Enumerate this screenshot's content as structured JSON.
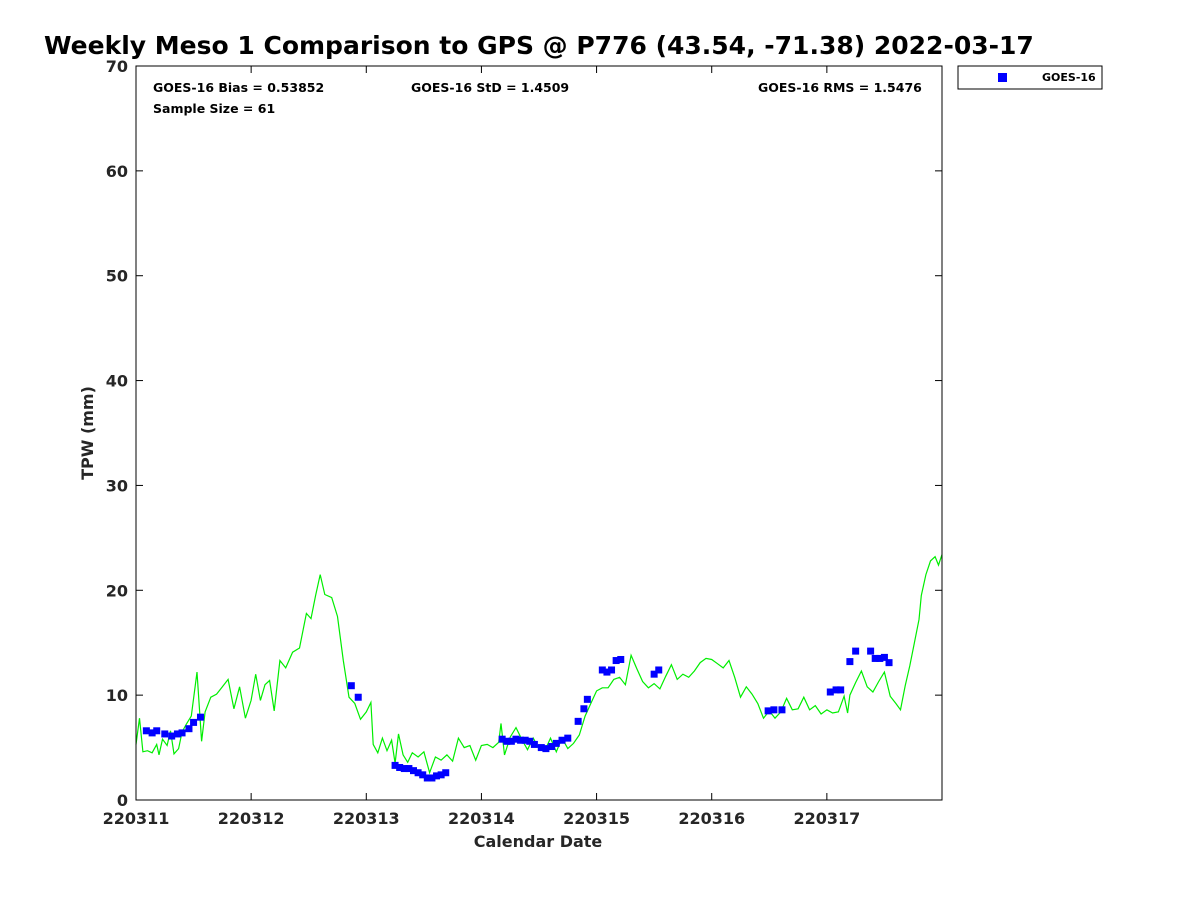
{
  "chart_data": {
    "type": "scatter",
    "title": "Weekly Meso 1 Comparison to GPS @ P776 (43.54, -71.38) 2022-03-17",
    "xlabel": "Calendar Date",
    "ylabel": "TPW (mm)",
    "xlim": [
      0,
      7
    ],
    "ylim": [
      0,
      70
    ],
    "yticks": [
      0,
      10,
      20,
      30,
      40,
      50,
      60,
      70
    ],
    "xticks": [
      {
        "value": 0,
        "label": "220311"
      },
      {
        "value": 1,
        "label": "220312"
      },
      {
        "value": 2,
        "label": "220313"
      },
      {
        "value": 3,
        "label": "220314"
      },
      {
        "value": 4,
        "label": "220315"
      },
      {
        "value": 5,
        "label": "220316"
      },
      {
        "value": 6,
        "label": "220317"
      }
    ],
    "grid": false,
    "legend_position": "top-right",
    "stats": {
      "bias": "GOES-16 Bias = 0.53852",
      "std": "GOES-16 StD = 1.4509",
      "rms": "GOES-16 RMS = 1.5476",
      "sample": "Sample Size = 61"
    },
    "series": [
      {
        "name": "GOES-16",
        "color": "#0000ff",
        "marker": "square",
        "points": [
          [
            0.09,
            6.6
          ],
          [
            0.14,
            6.4
          ],
          [
            0.18,
            6.6
          ],
          [
            0.25,
            6.3
          ],
          [
            0.31,
            6.1
          ],
          [
            0.36,
            6.3
          ],
          [
            0.4,
            6.4
          ],
          [
            0.46,
            6.8
          ],
          [
            0.5,
            7.4
          ],
          [
            0.56,
            7.9
          ],
          [
            1.87,
            10.9
          ],
          [
            1.93,
            9.8
          ],
          [
            2.25,
            3.3
          ],
          [
            2.29,
            3.1
          ],
          [
            2.33,
            3.0
          ],
          [
            2.37,
            3.0
          ],
          [
            2.41,
            2.8
          ],
          [
            2.45,
            2.6
          ],
          [
            2.49,
            2.4
          ],
          [
            2.53,
            2.1
          ],
          [
            2.57,
            2.1
          ],
          [
            2.61,
            2.3
          ],
          [
            2.65,
            2.4
          ],
          [
            2.69,
            2.6
          ],
          [
            3.18,
            5.8
          ],
          [
            3.22,
            5.6
          ],
          [
            3.26,
            5.6
          ],
          [
            3.3,
            5.8
          ],
          [
            3.34,
            5.7
          ],
          [
            3.38,
            5.7
          ],
          [
            3.42,
            5.6
          ],
          [
            3.46,
            5.3
          ],
          [
            3.52,
            5.0
          ],
          [
            3.56,
            4.9
          ],
          [
            3.61,
            5.1
          ],
          [
            3.65,
            5.4
          ],
          [
            3.7,
            5.7
          ],
          [
            3.75,
            5.9
          ],
          [
            3.84,
            7.5
          ],
          [
            3.89,
            8.7
          ],
          [
            3.92,
            9.6
          ],
          [
            4.05,
            12.4
          ],
          [
            4.09,
            12.2
          ],
          [
            4.13,
            12.4
          ],
          [
            4.17,
            13.3
          ],
          [
            4.21,
            13.4
          ],
          [
            4.5,
            12.0
          ],
          [
            4.54,
            12.4
          ],
          [
            5.49,
            8.5
          ],
          [
            5.54,
            8.6
          ],
          [
            5.61,
            8.6
          ],
          [
            6.03,
            10.3
          ],
          [
            6.08,
            10.5
          ],
          [
            6.12,
            10.5
          ],
          [
            6.2,
            13.2
          ],
          [
            6.25,
            14.2
          ],
          [
            6.38,
            14.2
          ],
          [
            6.42,
            13.5
          ],
          [
            6.46,
            13.5
          ],
          [
            6.5,
            13.6
          ],
          [
            6.54,
            13.1
          ]
        ]
      },
      {
        "name": "",
        "color": "#00ee00",
        "marker": "line",
        "points": [
          [
            0,
            5.3
          ],
          [
            0.03,
            7.8
          ],
          [
            0.06,
            4.6
          ],
          [
            0.1,
            4.7
          ],
          [
            0.14,
            4.5
          ],
          [
            0.18,
            5.3
          ],
          [
            0.2,
            4.3
          ],
          [
            0.23,
            5.8
          ],
          [
            0.27,
            5.2
          ],
          [
            0.3,
            6.6
          ],
          [
            0.33,
            4.4
          ],
          [
            0.37,
            4.9
          ],
          [
            0.4,
            6.5
          ],
          [
            0.44,
            7.3
          ],
          [
            0.48,
            8.0
          ],
          [
            0.53,
            12.2
          ],
          [
            0.57,
            5.6
          ],
          [
            0.6,
            8.4
          ],
          [
            0.65,
            9.8
          ],
          [
            0.7,
            10.1
          ],
          [
            0.75,
            10.8
          ],
          [
            0.8,
            11.5
          ],
          [
            0.85,
            8.7
          ],
          [
            0.9,
            10.8
          ],
          [
            0.95,
            7.8
          ],
          [
            1.0,
            9.5
          ],
          [
            1.04,
            12.0
          ],
          [
            1.08,
            9.5
          ],
          [
            1.12,
            11.0
          ],
          [
            1.16,
            11.4
          ],
          [
            1.2,
            8.5
          ],
          [
            1.25,
            13.3
          ],
          [
            1.3,
            12.6
          ],
          [
            1.36,
            14.1
          ],
          [
            1.42,
            14.5
          ],
          [
            1.48,
            17.8
          ],
          [
            1.52,
            17.3
          ],
          [
            1.56,
            19.5
          ],
          [
            1.6,
            21.5
          ],
          [
            1.64,
            19.6
          ],
          [
            1.7,
            19.3
          ],
          [
            1.75,
            17.5
          ],
          [
            1.8,
            13.3
          ],
          [
            1.85,
            9.8
          ],
          [
            1.9,
            9.2
          ],
          [
            1.95,
            7.7
          ],
          [
            2.0,
            8.4
          ],
          [
            2.04,
            9.3
          ],
          [
            2.06,
            5.3
          ],
          [
            2.1,
            4.5
          ],
          [
            2.14,
            5.9
          ],
          [
            2.18,
            4.7
          ],
          [
            2.22,
            5.7
          ],
          [
            2.25,
            3.5
          ],
          [
            2.28,
            6.3
          ],
          [
            2.32,
            4.3
          ],
          [
            2.36,
            3.6
          ],
          [
            2.4,
            4.5
          ],
          [
            2.45,
            4.1
          ],
          [
            2.5,
            4.6
          ],
          [
            2.55,
            2.6
          ],
          [
            2.6,
            4.1
          ],
          [
            2.65,
            3.8
          ],
          [
            2.7,
            4.3
          ],
          [
            2.75,
            3.7
          ],
          [
            2.8,
            5.9
          ],
          [
            2.85,
            5.0
          ],
          [
            2.9,
            5.2
          ],
          [
            2.95,
            3.8
          ],
          [
            3.0,
            5.2
          ],
          [
            3.05,
            5.3
          ],
          [
            3.1,
            5.0
          ],
          [
            3.15,
            5.5
          ],
          [
            3.17,
            7.3
          ],
          [
            3.2,
            4.3
          ],
          [
            3.25,
            6.0
          ],
          [
            3.3,
            6.9
          ],
          [
            3.35,
            5.8
          ],
          [
            3.4,
            4.8
          ],
          [
            3.45,
            5.9
          ],
          [
            3.5,
            4.9
          ],
          [
            3.55,
            4.7
          ],
          [
            3.6,
            5.9
          ],
          [
            3.65,
            4.6
          ],
          [
            3.7,
            5.9
          ],
          [
            3.75,
            4.9
          ],
          [
            3.8,
            5.4
          ],
          [
            3.85,
            6.2
          ],
          [
            3.9,
            8.0
          ],
          [
            3.95,
            9.2
          ],
          [
            4.0,
            10.4
          ],
          [
            4.05,
            10.7
          ],
          [
            4.1,
            10.7
          ],
          [
            4.15,
            11.5
          ],
          [
            4.2,
            11.7
          ],
          [
            4.25,
            11.0
          ],
          [
            4.3,
            13.8
          ],
          [
            4.35,
            12.5
          ],
          [
            4.4,
            11.3
          ],
          [
            4.45,
            10.7
          ],
          [
            4.5,
            11.1
          ],
          [
            4.55,
            10.6
          ],
          [
            4.6,
            11.8
          ],
          [
            4.65,
            12.9
          ],
          [
            4.7,
            11.5
          ],
          [
            4.75,
            12.0
          ],
          [
            4.8,
            11.7
          ],
          [
            4.85,
            12.3
          ],
          [
            4.9,
            13.1
          ],
          [
            4.95,
            13.5
          ],
          [
            5.0,
            13.4
          ],
          [
            5.05,
            13.0
          ],
          [
            5.1,
            12.6
          ],
          [
            5.15,
            13.3
          ],
          [
            5.2,
            11.7
          ],
          [
            5.25,
            9.8
          ],
          [
            5.3,
            10.8
          ],
          [
            5.35,
            10.1
          ],
          [
            5.4,
            9.2
          ],
          [
            5.45,
            7.8
          ],
          [
            5.5,
            8.5
          ],
          [
            5.55,
            7.8
          ],
          [
            5.6,
            8.4
          ],
          [
            5.65,
            9.7
          ],
          [
            5.7,
            8.6
          ],
          [
            5.75,
            8.7
          ],
          [
            5.8,
            9.8
          ],
          [
            5.85,
            8.6
          ],
          [
            5.9,
            9.0
          ],
          [
            5.95,
            8.2
          ],
          [
            6.0,
            8.6
          ],
          [
            6.05,
            8.3
          ],
          [
            6.1,
            8.4
          ],
          [
            6.15,
            9.9
          ],
          [
            6.18,
            8.3
          ],
          [
            6.2,
            10.0
          ],
          [
            6.25,
            11.2
          ],
          [
            6.3,
            12.3
          ],
          [
            6.35,
            10.8
          ],
          [
            6.4,
            10.3
          ],
          [
            6.45,
            11.3
          ],
          [
            6.5,
            12.2
          ],
          [
            6.55,
            9.9
          ],
          [
            6.6,
            9.2
          ],
          [
            6.64,
            8.6
          ],
          [
            6.68,
            10.9
          ],
          [
            6.72,
            12.8
          ],
          [
            6.76,
            15.0
          ],
          [
            6.8,
            17.2
          ],
          [
            6.82,
            19.5
          ],
          [
            6.86,
            21.5
          ],
          [
            6.9,
            22.8
          ],
          [
            6.94,
            23.2
          ],
          [
            6.97,
            22.4
          ],
          [
            7.0,
            23.4
          ]
        ]
      }
    ]
  }
}
